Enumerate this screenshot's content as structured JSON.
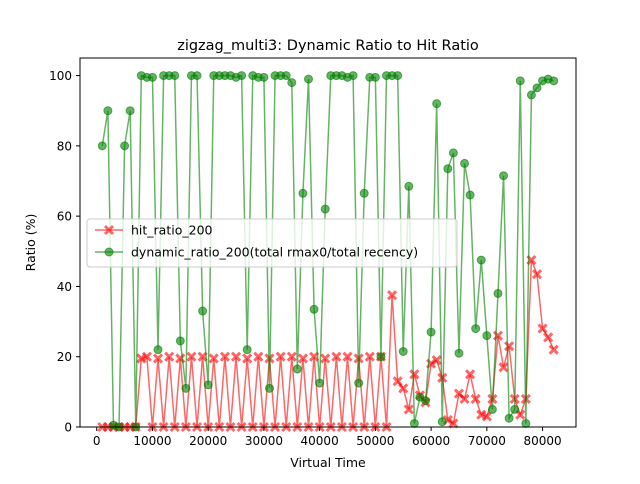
{
  "chart_data": {
    "type": "line",
    "title": "zigzag_multi3: Dynamic Ratio to Hit Ratio",
    "xlabel": "Virtual Time",
    "ylabel": "Ratio (%)",
    "xlim": [
      -3000,
      86000
    ],
    "ylim": [
      0,
      105
    ],
    "xticks": [
      0,
      10000,
      20000,
      30000,
      40000,
      50000,
      60000,
      70000,
      80000
    ],
    "yticks": [
      0,
      20,
      40,
      60,
      80,
      100
    ],
    "grid": false,
    "legend_position": "center-left",
    "series": [
      {
        "name": "hit_ratio_200",
        "color": "#ff0000",
        "marker": "X",
        "x": [
          1000,
          2000,
          3000,
          4000,
          5000,
          6000,
          7000,
          8000,
          9000,
          10000,
          11000,
          12000,
          13000,
          14000,
          15000,
          16000,
          17000,
          18000,
          19000,
          20000,
          21000,
          22000,
          23000,
          24000,
          25000,
          26000,
          27000,
          28000,
          29000,
          30000,
          31000,
          32000,
          33000,
          34000,
          35000,
          36000,
          37000,
          38000,
          39000,
          40000,
          41000,
          42000,
          43000,
          44000,
          45000,
          46000,
          47000,
          48000,
          49000,
          50000,
          51000,
          52000,
          53000,
          54000,
          55000,
          56000,
          57000,
          58000,
          59000,
          60000,
          61000,
          62000,
          63000,
          64000,
          65000,
          66000,
          67000,
          68000,
          69000,
          70000,
          71000,
          72000,
          73000,
          74000,
          75000,
          76000,
          77000,
          78000,
          79000,
          80000,
          81000,
          82000
        ],
        "values": [
          0,
          0,
          0,
          0,
          0,
          0,
          0,
          19.5,
          20,
          0,
          19.5,
          0,
          20,
          0,
          19.5,
          0,
          20,
          0,
          20,
          0,
          19.5,
          0,
          20,
          0,
          20,
          0,
          19.5,
          0,
          20,
          0,
          19.5,
          0,
          20,
          0,
          20,
          0,
          19.5,
          0,
          20,
          0,
          19.5,
          0,
          20,
          0,
          20,
          0,
          19.5,
          0,
          20,
          0,
          20,
          0,
          37.5,
          13,
          11,
          5,
          15,
          9,
          7,
          18,
          19,
          14,
          2,
          1,
          9.5,
          8,
          15,
          8,
          3.5,
          3,
          8,
          26,
          17,
          23,
          8,
          3.5,
          8,
          47.5,
          43.5,
          28,
          25.5,
          22
        ]
      },
      {
        "name": "dynamic_ratio_200(total rmax0/total recency)",
        "color": "#008000",
        "marker": "o",
        "x": [
          1000,
          2000,
          3000,
          4000,
          5000,
          6000,
          7000,
          8000,
          9000,
          10000,
          11000,
          12000,
          13000,
          14000,
          15000,
          16000,
          17000,
          18000,
          19000,
          20000,
          21000,
          22000,
          23000,
          24000,
          25000,
          26000,
          27000,
          28000,
          29000,
          30000,
          31000,
          32000,
          33000,
          34000,
          35000,
          36000,
          37000,
          38000,
          39000,
          40000,
          41000,
          42000,
          43000,
          44000,
          45000,
          46000,
          47000,
          48000,
          49000,
          50000,
          51000,
          52000,
          53000,
          54000,
          55000,
          56000,
          57000,
          58000,
          59000,
          60000,
          61000,
          62000,
          63000,
          64000,
          65000,
          66000,
          67000,
          68000,
          69000,
          70000,
          71000,
          72000,
          73000,
          74000,
          75000,
          76000,
          77000,
          78000,
          79000,
          80000,
          81000,
          82000
        ],
        "values": [
          80,
          90,
          0.5,
          0,
          80,
          90,
          0,
          100,
          99.5,
          99.5,
          22,
          100,
          100,
          100,
          24.5,
          11,
          100,
          100,
          33,
          12,
          100,
          100,
          100,
          100,
          99.5,
          100,
          22,
          100,
          99.5,
          99.5,
          11,
          100,
          100,
          100,
          98,
          16.5,
          66.5,
          99,
          33.5,
          12.5,
          62,
          100,
          100,
          100,
          99.5,
          100,
          12.5,
          66.5,
          99.5,
          99.5,
          20,
          100,
          100,
          100,
          21.5,
          68.5,
          1,
          8.5,
          7.5,
          27,
          92,
          1.5,
          73.5,
          78,
          21,
          75,
          66,
          28,
          47.5,
          26,
          5,
          38,
          71.5,
          2.5,
          5,
          98.5,
          1,
          94.5,
          96.5,
          98.5,
          99,
          98.5
        ]
      }
    ]
  }
}
